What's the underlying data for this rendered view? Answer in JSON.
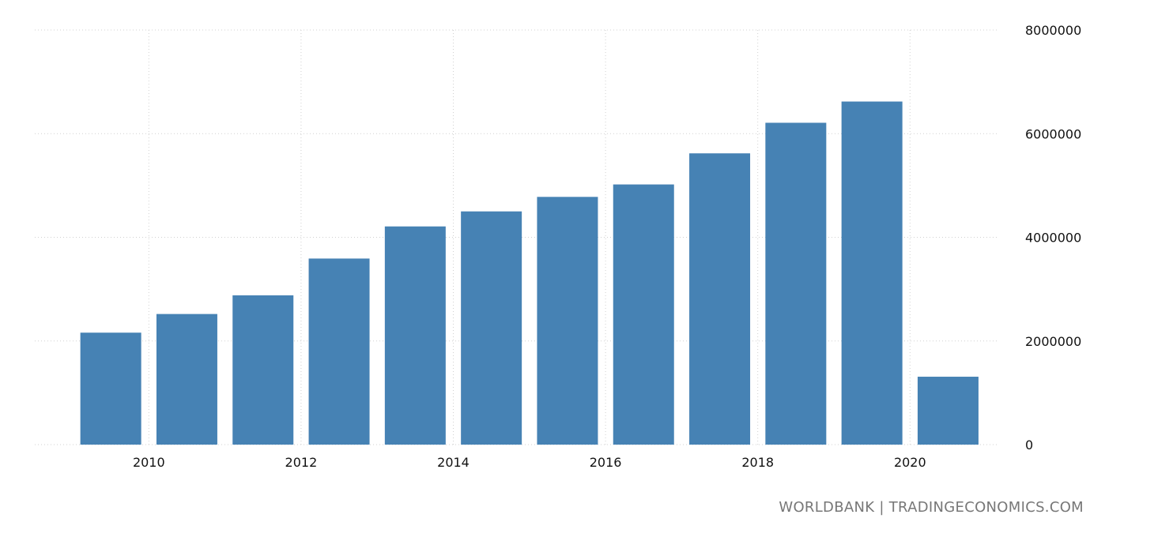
{
  "chart_data": {
    "type": "bar",
    "title": "",
    "xlabel": "",
    "ylabel": "",
    "categories": [
      "2009",
      "2010",
      "2011",
      "2012",
      "2013",
      "2014",
      "2015",
      "2016",
      "2017",
      "2018",
      "2019",
      "2020"
    ],
    "values": [
      2160000,
      2520000,
      2880000,
      3590000,
      4210000,
      4500000,
      4780000,
      5020000,
      5620000,
      6210000,
      6620000,
      1310000
    ],
    "ylim": [
      0,
      8000000
    ],
    "y_ticks": [
      "0",
      "2000000",
      "4000000",
      "6000000",
      "8000000"
    ],
    "x_ticks": [
      "2010",
      "2012",
      "2014",
      "2016",
      "2018",
      "2020"
    ],
    "grid": true,
    "y_axis_side": "right",
    "bar_color": "#4682b4"
  },
  "footer": {
    "source": "WORLDBANK | TRADINGECONOMICS.COM"
  }
}
